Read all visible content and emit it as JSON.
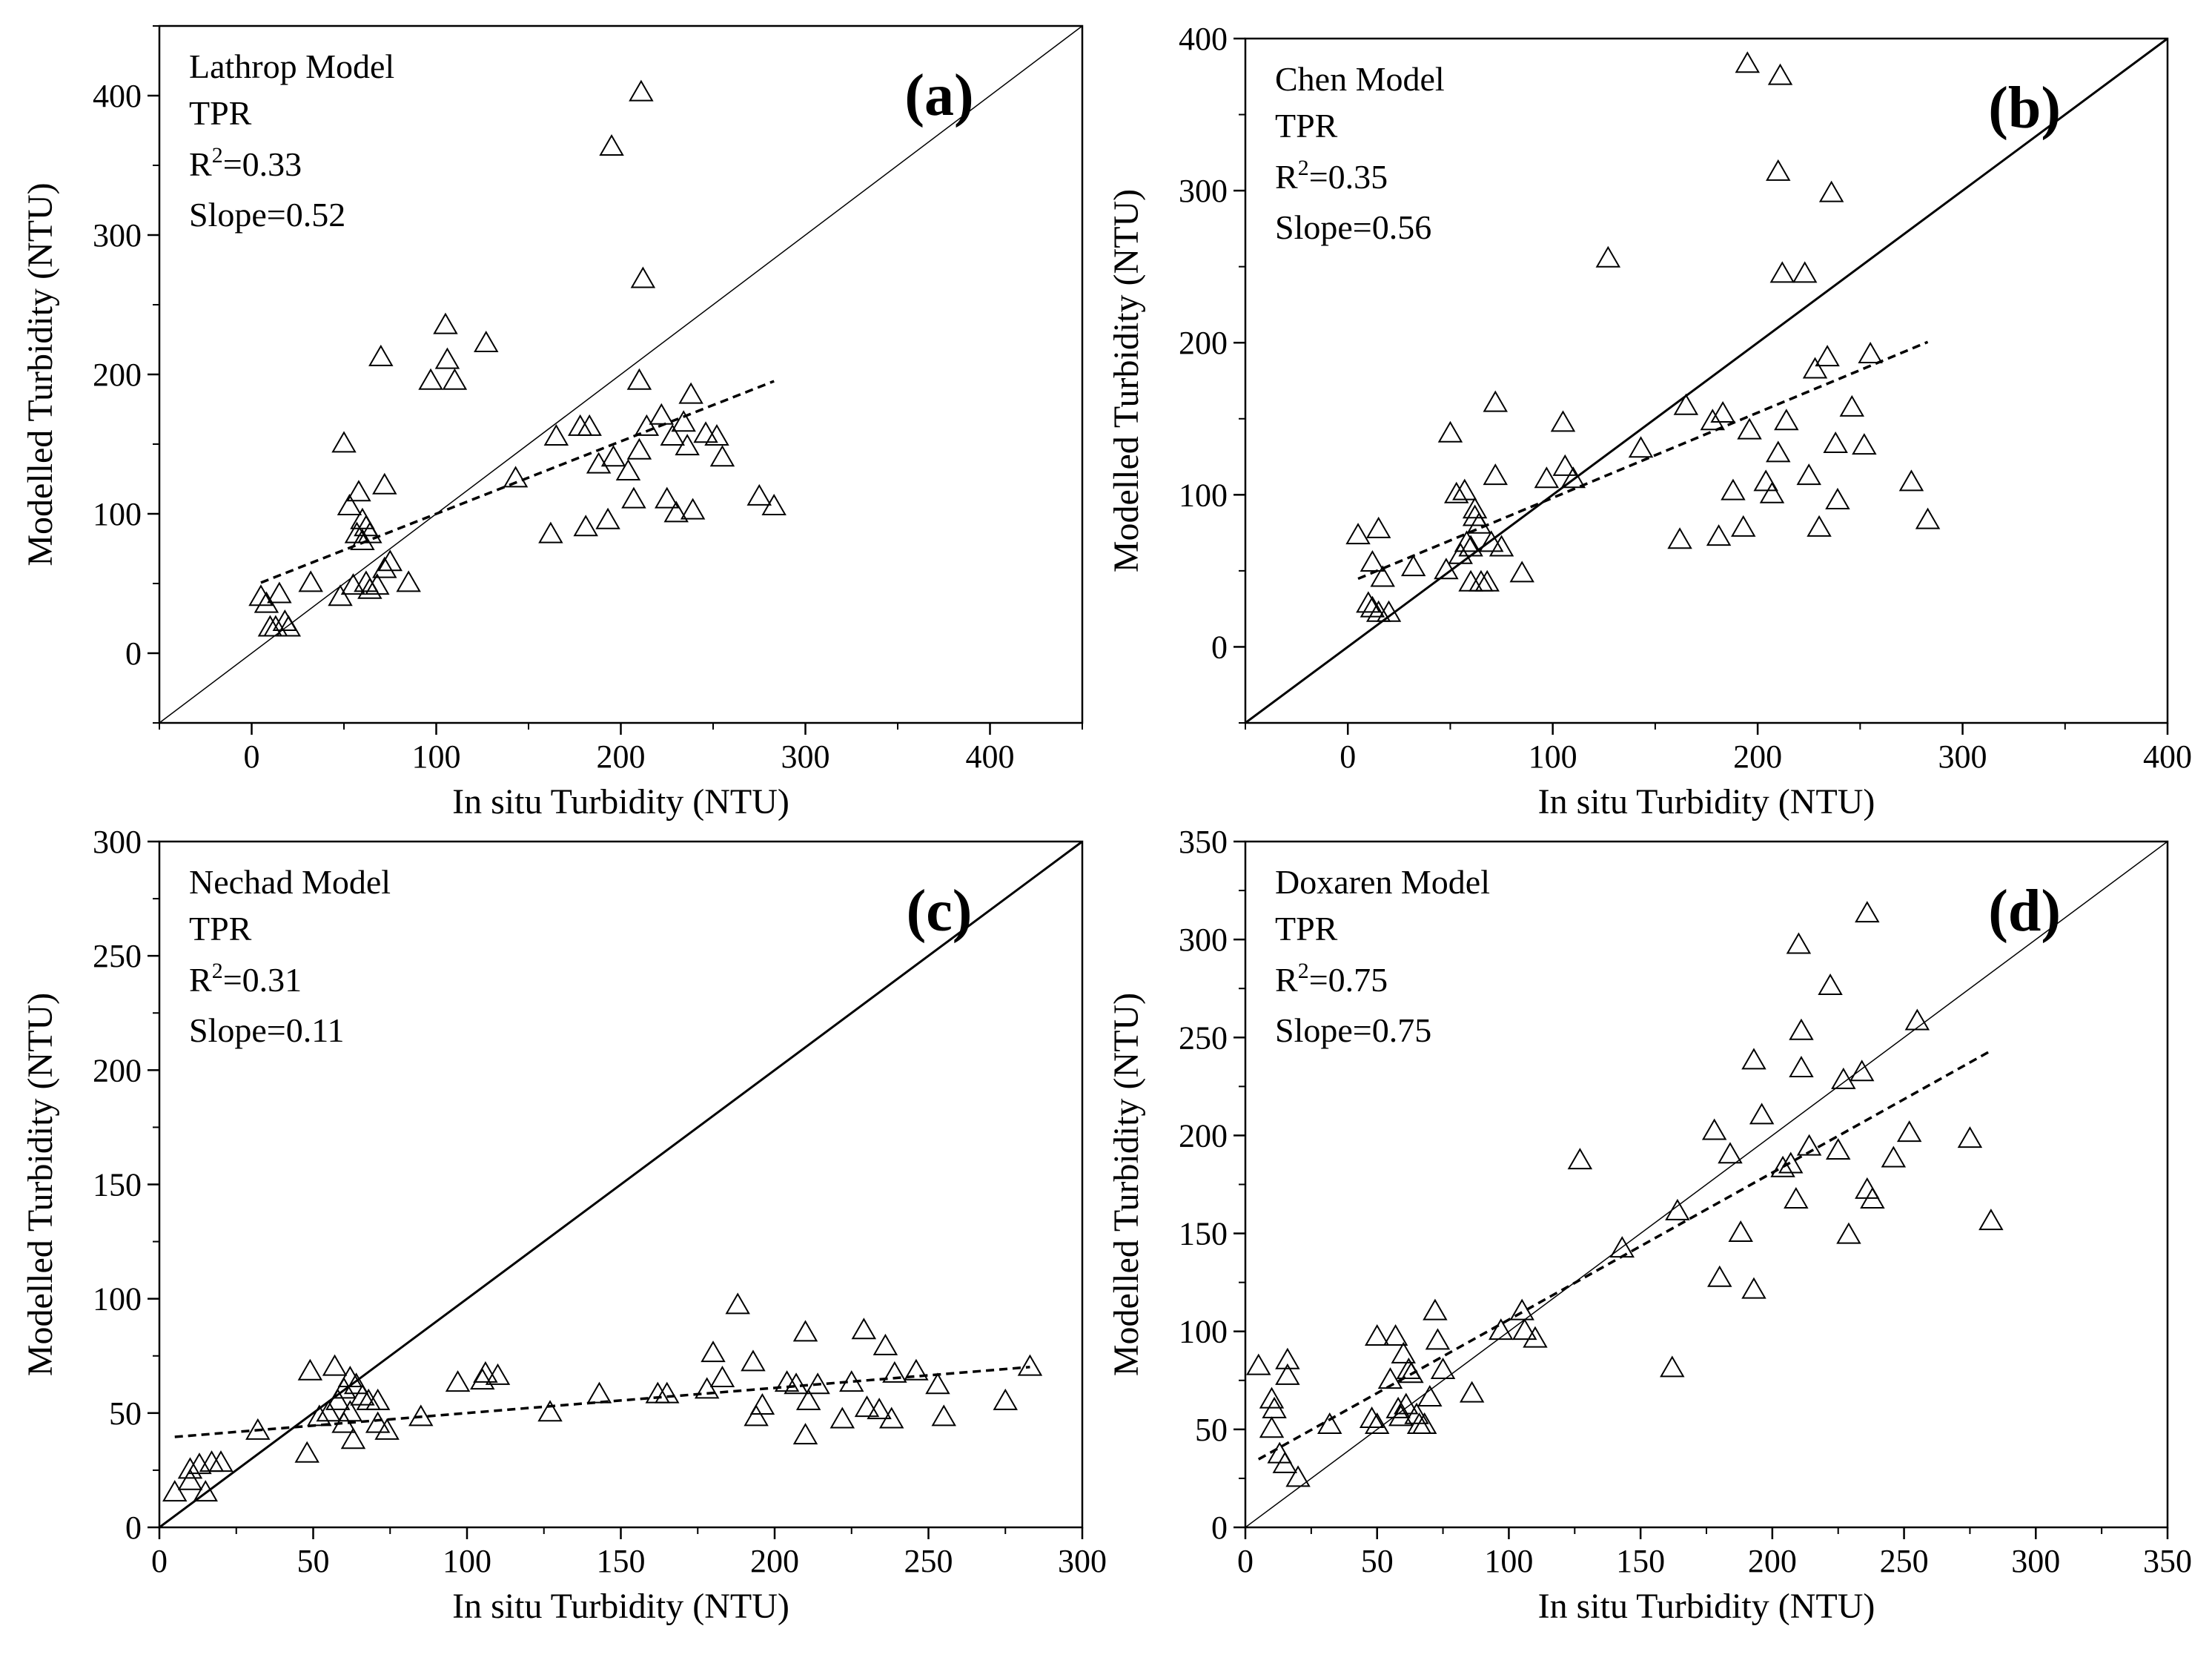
{
  "figure": {
    "description_shown": "four scatter panels"
  },
  "chart_data": [
    {
      "type": "scatter",
      "panel_label": "(a)",
      "model_name": "Lathrop Model",
      "site": "TPR",
      "r2_prefix": "R",
      "r2_sup": "2",
      "r2_value": "=0.33",
      "slope_text": "Slope=0.52",
      "xlabel": "In situ Turbidity (NTU)",
      "ylabel": "Modelled Turbidity (NTU)",
      "xlim": [
        -50,
        450
      ],
      "ylim": [
        -50,
        450
      ],
      "xticks": [
        0,
        100,
        200,
        300,
        400
      ],
      "yticks": [
        0,
        100,
        200,
        300,
        400
      ],
      "one_to_one": true,
      "one_to_one_width": 1.5,
      "fit": {
        "slope": 0.52,
        "intercept": 48,
        "x_range": [
          5,
          283
        ]
      },
      "points": [
        [
          5,
          40
        ],
        [
          8,
          35
        ],
        [
          15,
          42
        ],
        [
          10,
          18
        ],
        [
          13,
          18
        ],
        [
          18,
          22
        ],
        [
          20,
          18
        ],
        [
          32,
          50
        ],
        [
          50,
          150
        ],
        [
          53,
          105
        ],
        [
          58,
          115
        ],
        [
          57,
          85
        ],
        [
          60,
          95
        ],
        [
          62,
          90
        ],
        [
          64,
          85
        ],
        [
          60,
          80
        ],
        [
          48,
          40
        ],
        [
          55,
          48
        ],
        [
          62,
          50
        ],
        [
          64,
          45
        ],
        [
          68,
          48
        ],
        [
          72,
          120
        ],
        [
          70,
          212
        ],
        [
          72,
          60
        ],
        [
          75,
          65
        ],
        [
          85,
          50
        ],
        [
          97,
          195
        ],
        [
          105,
          235
        ],
        [
          106,
          210
        ],
        [
          110,
          195
        ],
        [
          127,
          222
        ],
        [
          143,
          125
        ],
        [
          165,
          155
        ],
        [
          162,
          85
        ],
        [
          178,
          162
        ],
        [
          181,
          90
        ],
        [
          183,
          162
        ],
        [
          188,
          135
        ],
        [
          193,
          95
        ],
        [
          195,
          363
        ],
        [
          196,
          140
        ],
        [
          204,
          130
        ],
        [
          207,
          110
        ],
        [
          210,
          195
        ],
        [
          210,
          145
        ],
        [
          211,
          402
        ],
        [
          212,
          268
        ],
        [
          214,
          162
        ],
        [
          222,
          170
        ],
        [
          225,
          110
        ],
        [
          228,
          155
        ],
        [
          230,
          100
        ],
        [
          234,
          165
        ],
        [
          236,
          148
        ],
        [
          238,
          185
        ],
        [
          239,
          102
        ],
        [
          246,
          157
        ],
        [
          252,
          155
        ],
        [
          255,
          140
        ],
        [
          275,
          112
        ],
        [
          283,
          105
        ]
      ]
    },
    {
      "type": "scatter",
      "panel_label": "(b)",
      "model_name": "Chen Model",
      "site": "TPR",
      "r2_prefix": "R",
      "r2_sup": "2",
      "r2_value": "=0.35",
      "slope_text": "Slope=0.56",
      "xlabel": "In situ Turbidity (NTU)",
      "ylabel": "Modelled Turbidity (NTU)",
      "xlim": [
        -50,
        400
      ],
      "ylim": [
        -50,
        400
      ],
      "xticks": [
        0,
        100,
        200,
        300,
        400
      ],
      "yticks": [
        0,
        100,
        200,
        300,
        400
      ],
      "one_to_one": true,
      "one_to_one_width": 3,
      "fit": {
        "slope": 0.56,
        "intercept": 42,
        "x_range": [
          5,
          283
        ]
      },
      "points": [
        [
          5,
          73
        ],
        [
          10,
          28
        ],
        [
          12,
          25
        ],
        [
          15,
          22
        ],
        [
          15,
          77
        ],
        [
          12,
          55
        ],
        [
          17,
          45
        ],
        [
          20,
          22
        ],
        [
          32,
          52
        ],
        [
          50,
          140
        ],
        [
          53,
          100
        ],
        [
          57,
          102
        ],
        [
          58,
          68
        ],
        [
          60,
          65
        ],
        [
          60,
          42
        ],
        [
          62,
          90
        ],
        [
          62,
          85
        ],
        [
          64,
          80
        ],
        [
          48,
          50
        ],
        [
          55,
          60
        ],
        [
          65,
          42
        ],
        [
          68,
          42
        ],
        [
          70,
          68
        ],
        [
          72,
          160
        ],
        [
          72,
          112
        ],
        [
          75,
          65
        ],
        [
          85,
          48
        ],
        [
          97,
          110
        ],
        [
          105,
          147
        ],
        [
          106,
          118
        ],
        [
          110,
          110
        ],
        [
          127,
          255
        ],
        [
          143,
          130
        ],
        [
          162,
          70
        ],
        [
          165,
          158
        ],
        [
          178,
          148
        ],
        [
          181,
          72
        ],
        [
          183,
          153
        ],
        [
          188,
          102
        ],
        [
          193,
          78
        ],
        [
          195,
          383
        ],
        [
          196,
          142
        ],
        [
          204,
          108
        ],
        [
          207,
          100
        ],
        [
          210,
          127
        ],
        [
          210,
          312
        ],
        [
          211,
          375
        ],
        [
          212,
          245
        ],
        [
          214,
          148
        ],
        [
          223,
          245
        ],
        [
          225,
          112
        ],
        [
          228,
          182
        ],
        [
          230,
          78
        ],
        [
          234,
          190
        ],
        [
          236,
          298
        ],
        [
          238,
          133
        ],
        [
          239,
          96
        ],
        [
          246,
          157
        ],
        [
          252,
          132
        ],
        [
          255,
          192
        ],
        [
          275,
          108
        ],
        [
          283,
          83
        ]
      ]
    },
    {
      "type": "scatter",
      "panel_label": "(c)",
      "model_name": "Nechad Model",
      "site": "TPR",
      "r2_prefix": "R",
      "r2_sup": "2",
      "r2_value": "=0.31",
      "slope_text": "Slope=0.11",
      "xlabel": "In situ Turbidity (NTU)",
      "ylabel": "Modelled Turbidity (NTU)",
      "xlim": [
        0,
        300
      ],
      "ylim": [
        0,
        300
      ],
      "xticks": [
        0,
        50,
        100,
        150,
        200,
        250,
        300
      ],
      "yticks": [
        0,
        50,
        100,
        150,
        200,
        250,
        300
      ],
      "one_to_one": true,
      "one_to_one_width": 3,
      "fit": {
        "slope": 0.11,
        "intercept": 39,
        "x_range": [
          5,
          283
        ]
      },
      "points": [
        [
          5,
          15
        ],
        [
          10,
          25
        ],
        [
          10,
          20
        ],
        [
          13,
          27
        ],
        [
          15,
          15
        ],
        [
          17,
          28
        ],
        [
          20,
          28
        ],
        [
          32,
          42
        ],
        [
          48,
          32
        ],
        [
          49,
          68
        ],
        [
          52,
          48
        ],
        [
          55,
          50
        ],
        [
          57,
          70
        ],
        [
          58,
          55
        ],
        [
          60,
          60
        ],
        [
          60,
          45
        ],
        [
          62,
          65
        ],
        [
          62,
          50
        ],
        [
          63,
          38
        ],
        [
          64,
          62
        ],
        [
          66,
          57
        ],
        [
          68,
          55
        ],
        [
          71,
          55
        ],
        [
          71,
          45
        ],
        [
          74,
          42
        ],
        [
          85,
          48
        ],
        [
          97,
          63
        ],
        [
          105,
          64
        ],
        [
          106,
          67
        ],
        [
          110,
          66
        ],
        [
          127,
          50
        ],
        [
          143,
          58
        ],
        [
          162,
          58
        ],
        [
          165,
          58
        ],
        [
          178,
          60
        ],
        [
          180,
          76
        ],
        [
          183,
          65
        ],
        [
          188,
          97
        ],
        [
          193,
          72
        ],
        [
          194,
          48
        ],
        [
          196,
          53
        ],
        [
          204,
          63
        ],
        [
          207,
          62
        ],
        [
          210,
          85
        ],
        [
          210,
          40
        ],
        [
          211,
          55
        ],
        [
          214,
          62
        ],
        [
          222,
          47
        ],
        [
          225,
          63
        ],
        [
          229,
          86
        ],
        [
          230,
          52
        ],
        [
          234,
          51
        ],
        [
          236,
          79
        ],
        [
          238,
          47
        ],
        [
          239,
          67
        ],
        [
          246,
          68
        ],
        [
          253,
          62
        ],
        [
          255,
          48
        ],
        [
          275,
          55
        ],
        [
          283,
          70
        ]
      ]
    },
    {
      "type": "scatter",
      "panel_label": "(d)",
      "model_name": "Doxaren Model",
      "site": "TPR",
      "r2_prefix": "R",
      "r2_sup": "2",
      "r2_value": "=0.75",
      "slope_text": "Slope=0.75",
      "xlabel": "In situ Turbidity (NTU)",
      "ylabel": "Modelled Turbidity (NTU)",
      "xlim": [
        0,
        350
      ],
      "ylim": [
        0,
        350
      ],
      "xticks": [
        0,
        50,
        100,
        150,
        200,
        250,
        300,
        350
      ],
      "yticks": [
        0,
        50,
        100,
        150,
        200,
        250,
        300,
        350
      ],
      "one_to_one": true,
      "one_to_one_width": 1.5,
      "fit": {
        "slope": 0.75,
        "intercept": 31,
        "x_range": [
          5,
          283
        ]
      },
      "points": [
        [
          5,
          82
        ],
        [
          10,
          65
        ],
        [
          11,
          60
        ],
        [
          10,
          50
        ],
        [
          13,
          37
        ],
        [
          15,
          32
        ],
        [
          16,
          85
        ],
        [
          16,
          77
        ],
        [
          20,
          25
        ],
        [
          32,
          52
        ],
        [
          48,
          55
        ],
        [
          50,
          52
        ],
        [
          50,
          97
        ],
        [
          55,
          75
        ],
        [
          57,
          97
        ],
        [
          58,
          60
        ],
        [
          59,
          56
        ],
        [
          60,
          88
        ],
        [
          61,
          62
        ],
        [
          62,
          80
        ],
        [
          63,
          78
        ],
        [
          65,
          57
        ],
        [
          66,
          52
        ],
        [
          68,
          52
        ],
        [
          72,
          110
        ],
        [
          70,
          66
        ],
        [
          73,
          95
        ],
        [
          75,
          80
        ],
        [
          86,
          68
        ],
        [
          97,
          100
        ],
        [
          105,
          110
        ],
        [
          106,
          100
        ],
        [
          110,
          96
        ],
        [
          127,
          187
        ],
        [
          143,
          142
        ],
        [
          162,
          81
        ],
        [
          164,
          161
        ],
        [
          178,
          202
        ],
        [
          180,
          127
        ],
        [
          184,
          190
        ],
        [
          188,
          150
        ],
        [
          193,
          238
        ],
        [
          193,
          121
        ],
        [
          196,
          210
        ],
        [
          204,
          183
        ],
        [
          207,
          185
        ],
        [
          209,
          167
        ],
        [
          210,
          297
        ],
        [
          211,
          253
        ],
        [
          211,
          234
        ],
        [
          214,
          194
        ],
        [
          222,
          276
        ],
        [
          225,
          192
        ],
        [
          227,
          228
        ],
        [
          229,
          149
        ],
        [
          234,
          232
        ],
        [
          236,
          313
        ],
        [
          236,
          172
        ],
        [
          238,
          167
        ],
        [
          246,
          188
        ],
        [
          252,
          201
        ],
        [
          255,
          258
        ],
        [
          275,
          198
        ],
        [
          283,
          156
        ]
      ]
    }
  ]
}
